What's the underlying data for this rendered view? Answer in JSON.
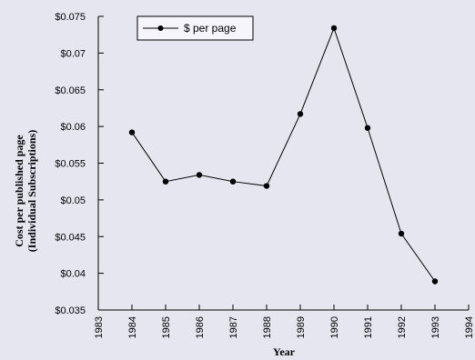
{
  "chart_data": {
    "type": "line",
    "title": "",
    "xlabel": "Year",
    "ylabel_line1": "Cost per published page",
    "ylabel_line2": "(Individual Subscriptions)",
    "xlim": [
      1983,
      1994
    ],
    "ylim": [
      0.035,
      0.075
    ],
    "x_ticks": [
      "1983",
      "1984",
      "1985",
      "1986",
      "1987",
      "1988",
      "1989",
      "1990",
      "1991",
      "1992",
      "1993",
      "1994"
    ],
    "y_ticks": [
      "$0.035",
      "$0.04",
      "$0.045",
      "$0.05",
      "$0.055",
      "$0.06",
      "$0.065",
      "$0.07",
      "$0.075"
    ],
    "legend_position": "top-left",
    "grid": false,
    "series": [
      {
        "name": "$ per page",
        "color": "#000000",
        "marker": "circle",
        "points": [
          {
            "x": 1984,
            "y": 0.0592
          },
          {
            "x": 1985,
            "y": 0.0525
          },
          {
            "x": 1986,
            "y": 0.0534
          },
          {
            "x": 1987,
            "y": 0.0525
          },
          {
            "x": 1988,
            "y": 0.0519
          },
          {
            "x": 1989,
            "y": 0.0617
          },
          {
            "x": 1990,
            "y": 0.0734
          },
          {
            "x": 1991,
            "y": 0.0598
          },
          {
            "x": 1992,
            "y": 0.0454
          },
          {
            "x": 1993,
            "y": 0.0389
          }
        ]
      }
    ]
  }
}
